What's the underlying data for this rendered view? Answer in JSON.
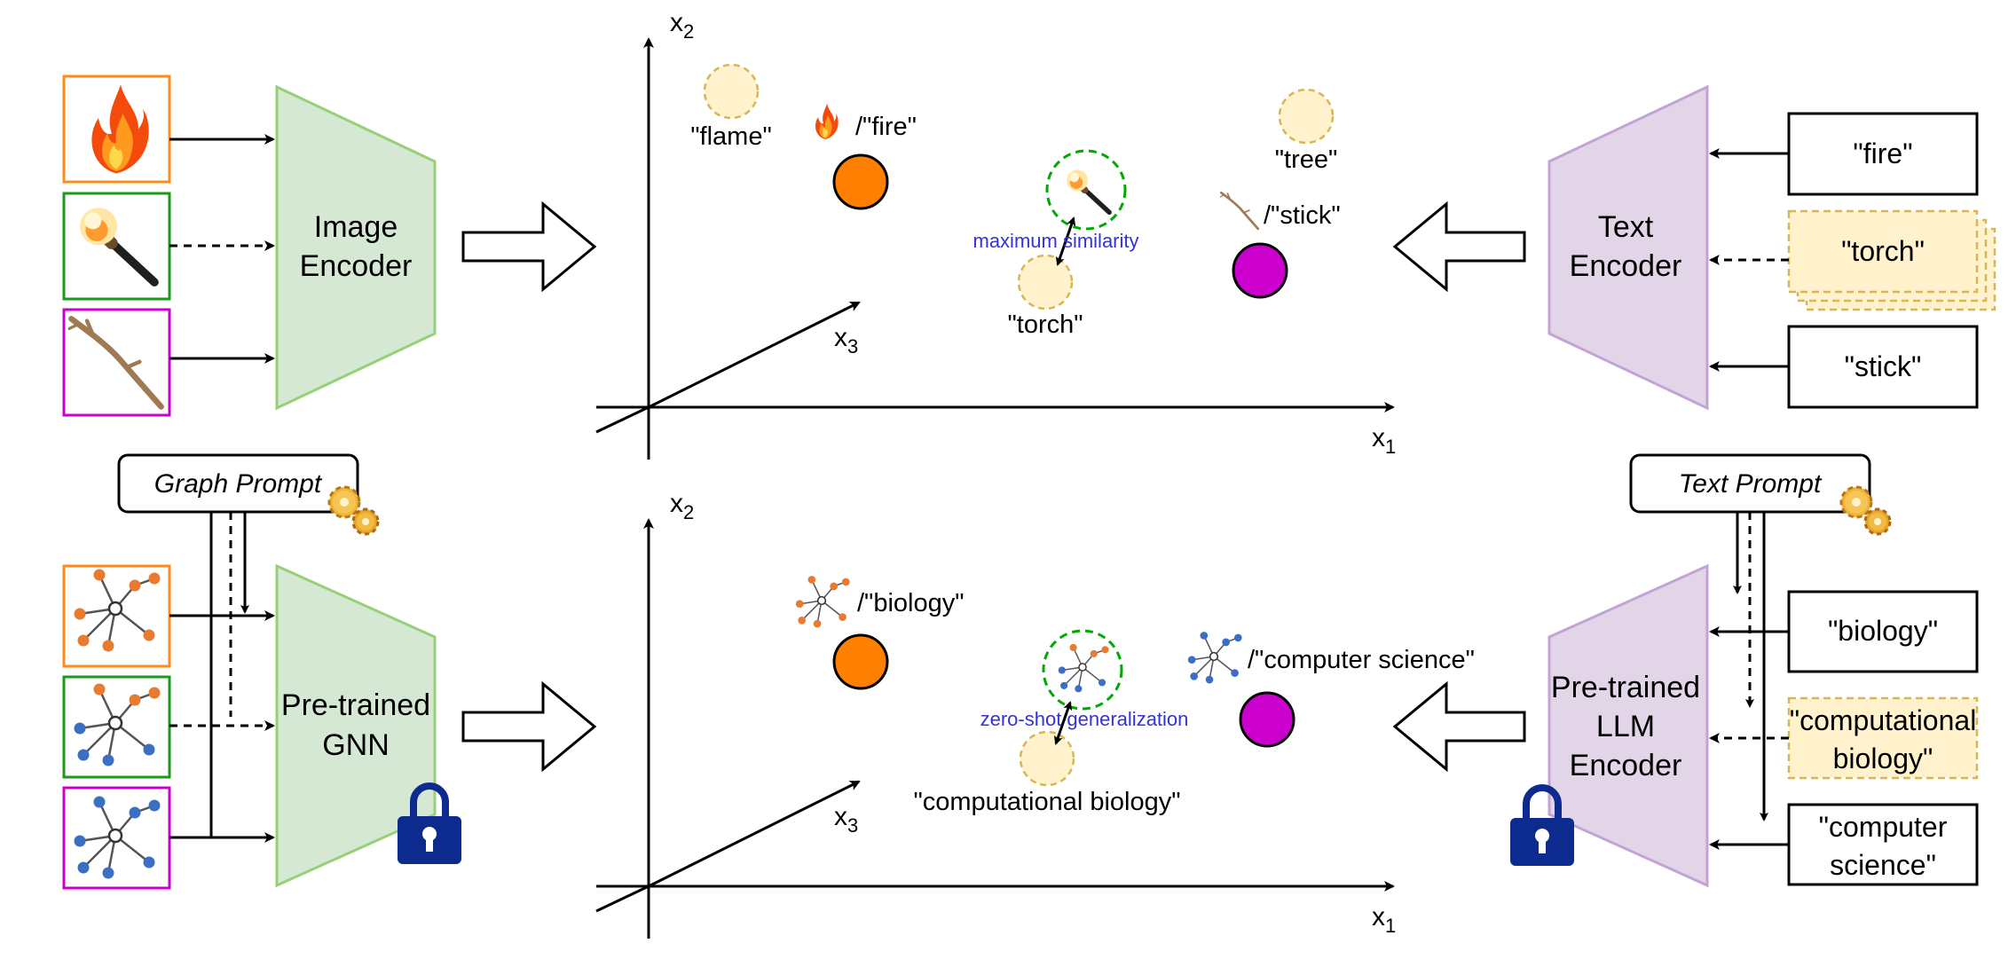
{
  "encoders": {
    "image": [
      "Image",
      "Encoder"
    ],
    "text": [
      "Text",
      "Encoder"
    ],
    "gnn": [
      "Pre-trained",
      "GNN"
    ],
    "llm": [
      "Pre-trained",
      "LLM",
      "Encoder"
    ]
  },
  "prompts": {
    "graph": "Graph Prompt",
    "text": "Text Prompt"
  },
  "text_inputs_top": {
    "fire": "\"fire\"",
    "torch": "\"torch\"",
    "stick": "\"stick\""
  },
  "text_inputs_bottom": {
    "biology": "\"biology\"",
    "computational": [
      "\"computational",
      "biology\""
    ],
    "computer_science": [
      "\"computer",
      "science\""
    ]
  },
  "axes": {
    "x1": "x",
    "x1_sub": "1",
    "x2": "x",
    "x2_sub": "2",
    "x3": "x",
    "x3_sub": "3"
  },
  "top_space": {
    "flame": "\"flame\"",
    "fire": "/\"fire\"",
    "tree": "\"tree\"",
    "stick": "/\"stick\"",
    "torch": "\"torch\"",
    "annotation": "maximum similarity"
  },
  "bottom_space": {
    "biology": "/\"biology\"",
    "computer_science": "/\"computer science\"",
    "computational_biology": "\"computational biology\"",
    "annotation": "zero-shot generalization"
  },
  "colors": {
    "image_encoder": "#d5e8d4",
    "image_encoder_stroke": "#97d077",
    "text_encoder": "#e1d5e7",
    "text_encoder_stroke": "#c3a3d6",
    "orange": "#ff8000",
    "magenta": "#cc00cc",
    "green_dash": "#00aa00",
    "candidate": "#fff2cc",
    "candidate_stroke": "#d6b656",
    "lock": "#0d2b8f",
    "annotation": "#3333dd"
  },
  "icons": [
    "fire-icon",
    "torch-icon",
    "stick-icon",
    "graph-icon",
    "gear-icon",
    "lock-icon"
  ]
}
